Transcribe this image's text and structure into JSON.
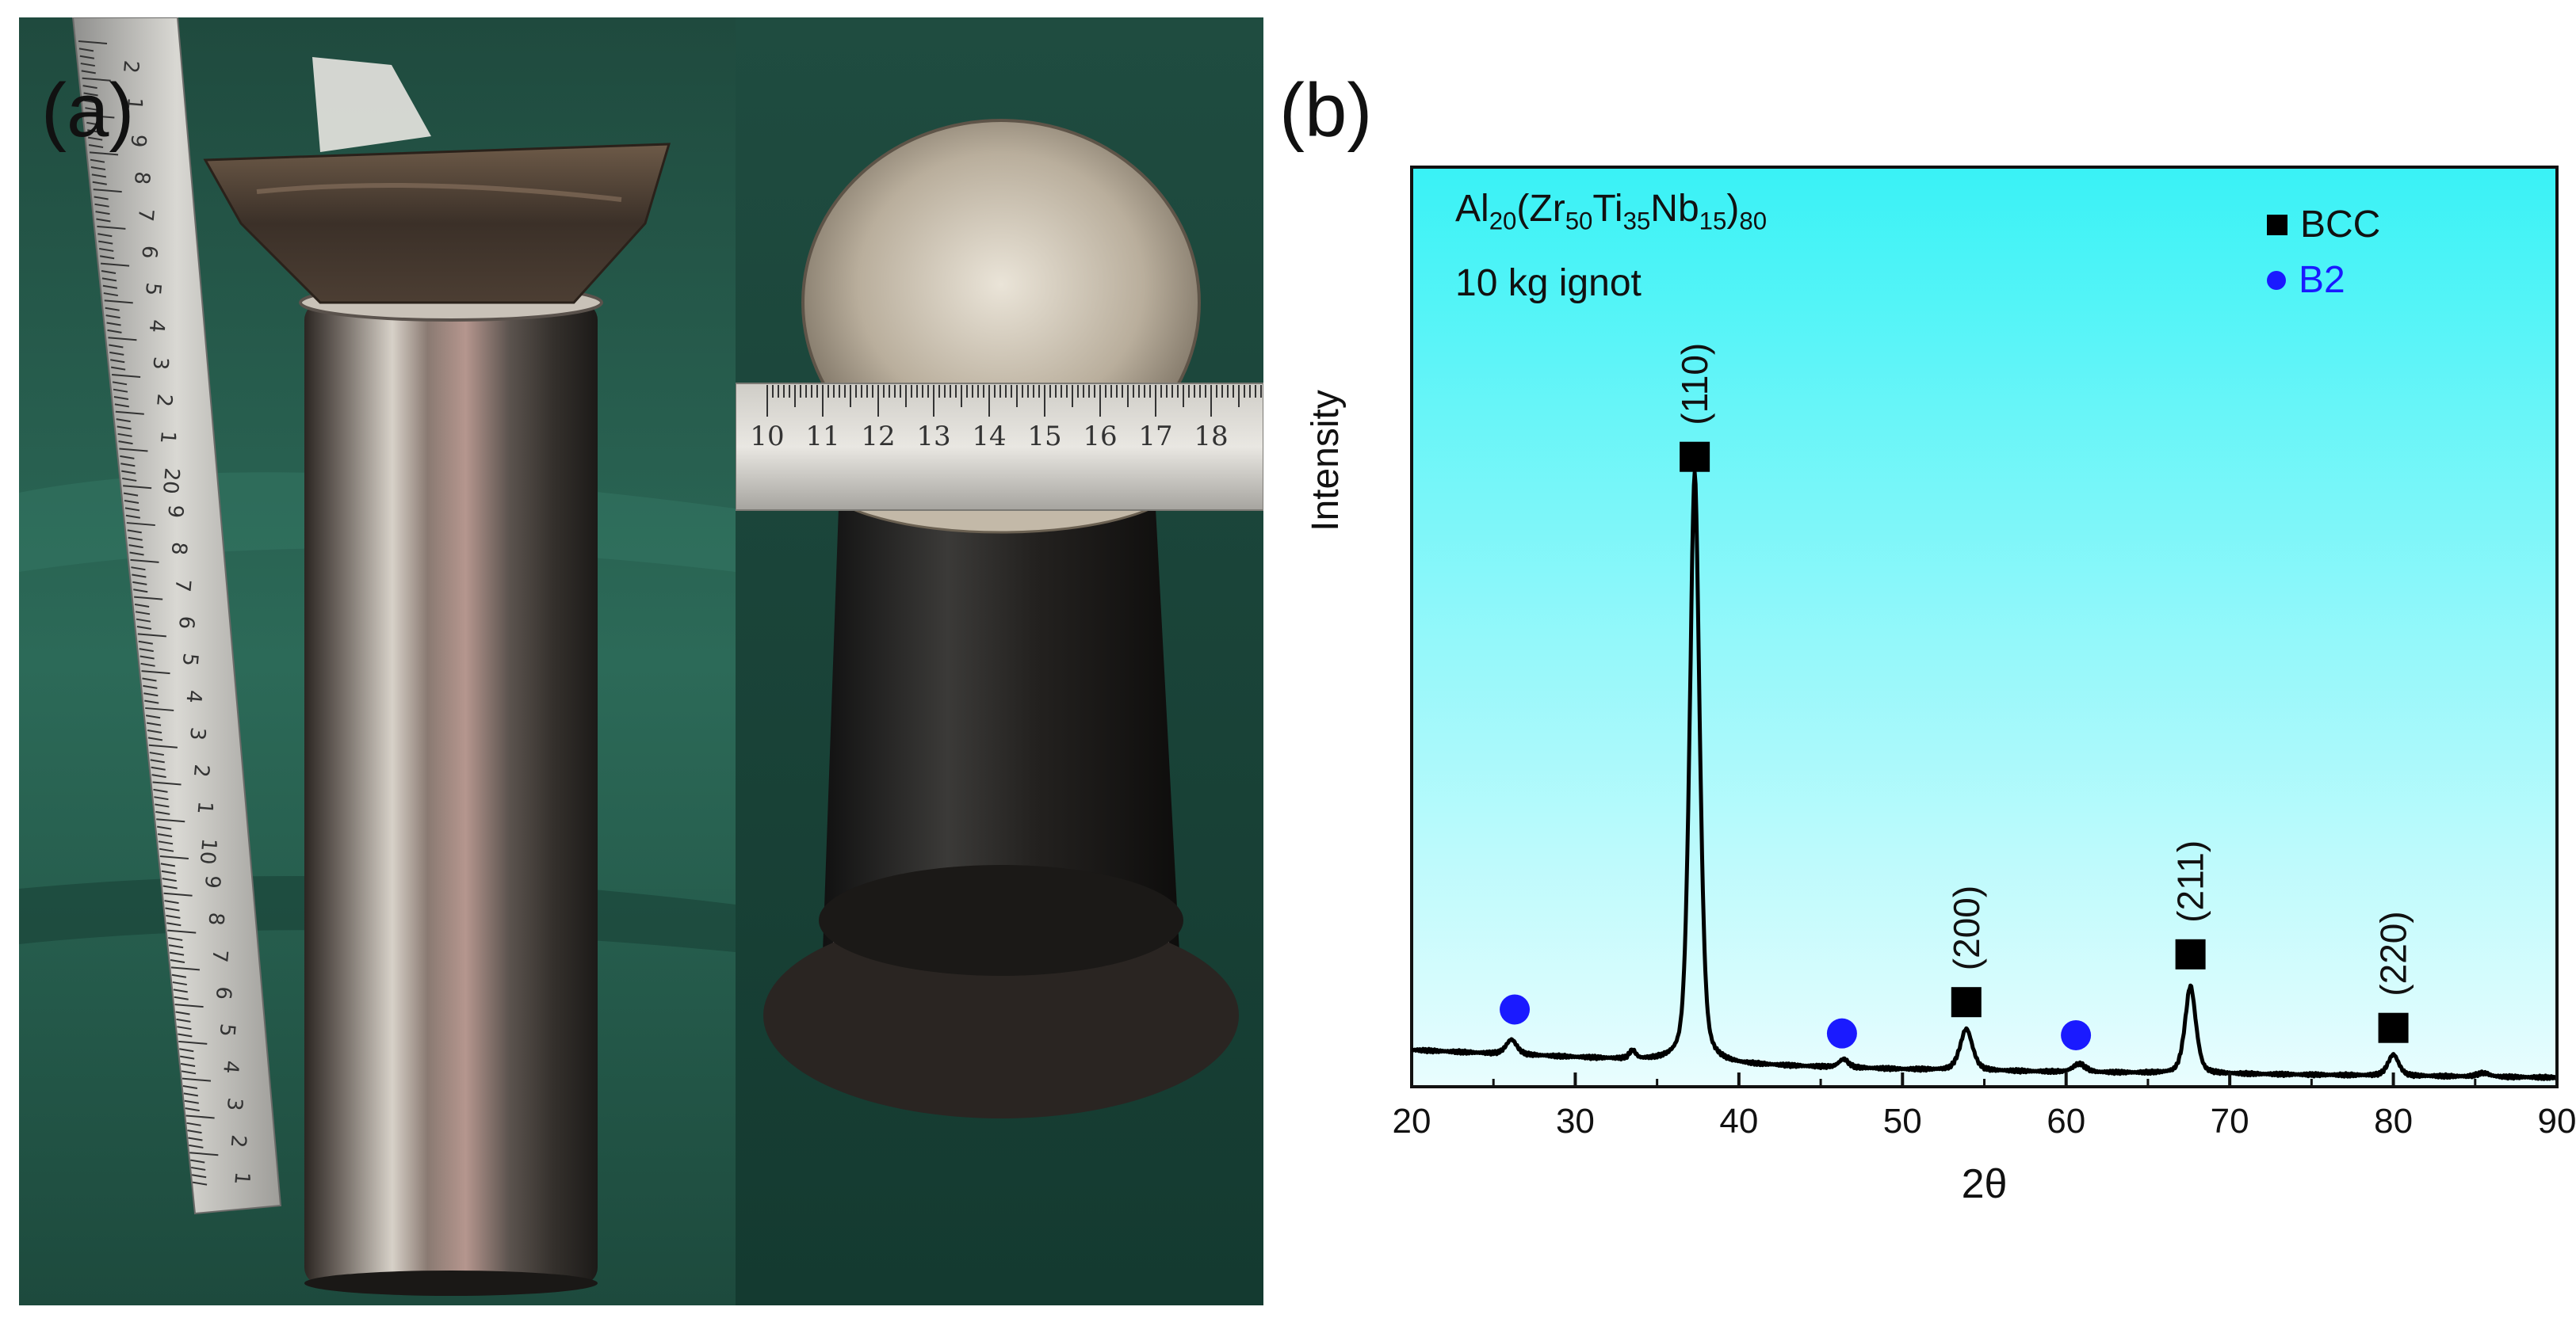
{
  "panels": {
    "a_label": "(a)",
    "b_label": "(b)"
  },
  "photo_a": {
    "ruler_ticks": [
      "2",
      "1",
      "9",
      "8",
      "7",
      "6",
      "5",
      "4",
      "3",
      "2",
      "1",
      "20",
      "9",
      "8",
      "7",
      "6",
      "5",
      "4",
      "3",
      "2",
      "1",
      "10",
      "9",
      "8",
      "7",
      "6",
      "5",
      "4",
      "3",
      "2",
      "1"
    ]
  },
  "photo_b": {
    "ruler_ticks": [
      "10",
      "11",
      "12",
      "13",
      "14",
      "15",
      "16",
      "17",
      "18"
    ]
  },
  "chart_data": {
    "type": "line",
    "title": "Al20(Zr50Ti35Nb15)80",
    "title_parts": {
      "base1": "Al",
      "sub1": "20",
      "base2": "(Zr",
      "sub2": "50",
      "base3": "Ti",
      "sub3": "35",
      "base4": "Nb",
      "sub4": "15",
      "base5": ")",
      "sub5": "80"
    },
    "subtitle": "10 kg ignot",
    "xlabel": "2θ",
    "ylabel": "Intensity",
    "xlim": [
      20,
      90
    ],
    "ylim": [
      0,
      100
    ],
    "xticks": [
      20,
      30,
      40,
      50,
      60,
      70,
      80,
      90
    ],
    "xtick_labels": [
      "20",
      "30",
      "40",
      "50",
      "60",
      "70",
      "80",
      "90"
    ],
    "background_gradient": [
      "#39f2f6",
      "#e9fdfe"
    ],
    "line_color": "#000000",
    "legend": [
      {
        "label": "BCC",
        "marker": "square",
        "color": "#000000"
      },
      {
        "label": "B2",
        "marker": "circle",
        "color": "#1a1aff"
      }
    ],
    "legend_position": "top-right",
    "baseline": {
      "x": [
        20,
        30,
        40,
        50,
        60,
        70,
        80,
        90
      ],
      "y": [
        4.0,
        3.2,
        2.4,
        1.9,
        1.6,
        1.4,
        1.2,
        1.0
      ]
    },
    "peaks": [
      {
        "x": 26.1,
        "height": 1.6,
        "width": 0.35,
        "phase": "B2"
      },
      {
        "x": 33.5,
        "height": 0.9,
        "width": 0.2
      },
      {
        "x": 37.3,
        "height": 64.0,
        "width": 0.32,
        "phase": "BCC",
        "hkl": "(110)"
      },
      {
        "x": 46.4,
        "height": 0.9,
        "width": 0.3,
        "phase": "B2"
      },
      {
        "x": 53.9,
        "height": 4.5,
        "width": 0.4,
        "phase": "BCC",
        "hkl": "(200)"
      },
      {
        "x": 60.8,
        "height": 0.9,
        "width": 0.4,
        "phase": "B2"
      },
      {
        "x": 67.6,
        "height": 9.5,
        "width": 0.35,
        "phase": "BCC",
        "hkl": "(211)"
      },
      {
        "x": 80.0,
        "height": 2.3,
        "width": 0.35,
        "phase": "BCC",
        "hkl": "(220)"
      },
      {
        "x": 85.5,
        "height": 0.4,
        "width": 0.4
      }
    ],
    "bcc_markers": [
      {
        "x": 37.3,
        "y": 68.5,
        "label": "(110)"
      },
      {
        "x": 53.9,
        "y": 9.2,
        "label": "(200)"
      },
      {
        "x": 67.6,
        "y": 14.4,
        "label": "(211)"
      },
      {
        "x": 80.0,
        "y": 6.4,
        "label": "(220)"
      }
    ],
    "b2_markers": [
      {
        "x": 26.3,
        "y": 8.4
      },
      {
        "x": 46.3,
        "y": 5.8
      },
      {
        "x": 60.6,
        "y": 5.6
      }
    ]
  }
}
